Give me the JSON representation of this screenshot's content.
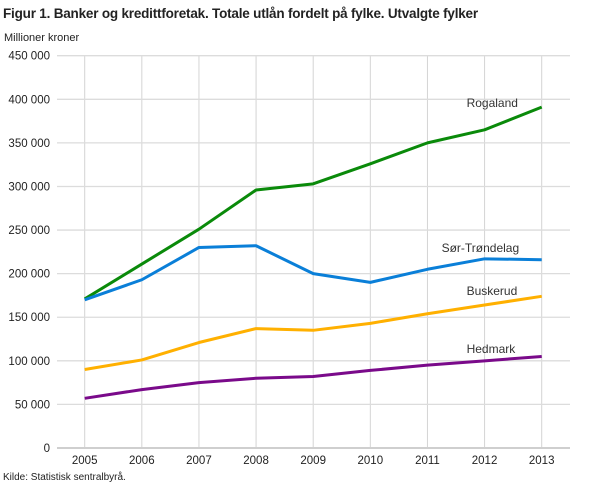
{
  "chart_data": {
    "type": "line",
    "title": "Figur 1. Banker og kredittforetak. Totale utlån fordelt på fylke. Utvalgte fylker",
    "ylabel": "Millioner kroner",
    "xlabel": "",
    "source": "Kilde: Statistisk sentralbyrå.",
    "x": [
      "2005",
      "2006",
      "2007",
      "2008",
      "2009",
      "2010",
      "2011",
      "2012",
      "2013"
    ],
    "ylim": [
      0,
      450000
    ],
    "yticks": [
      0,
      50000,
      100000,
      150000,
      200000,
      250000,
      300000,
      350000,
      400000,
      450000
    ],
    "ytick_labels": [
      "0",
      "50 000",
      "100 000",
      "150 000",
      "200 000",
      "250 000",
      "300 000",
      "350 000",
      "400 000",
      "450 000"
    ],
    "grid": true,
    "legend": "inline labels at line ends",
    "series": [
      {
        "name": "Rogaland",
        "color": "#0a8a0a",
        "values": [
          171000,
          211000,
          251000,
          296000,
          303000,
          326000,
          350000,
          365000,
          391000
        ]
      },
      {
        "name": "Sør-Trøndelag",
        "color": "#0a7fd8",
        "values": [
          170000,
          193000,
          230000,
          232000,
          200000,
          190000,
          205000,
          217000,
          216000
        ]
      },
      {
        "name": "Buskerud",
        "color": "#ffb000",
        "values": [
          90000,
          101000,
          121000,
          137000,
          135000,
          143000,
          154000,
          164000,
          174000
        ]
      },
      {
        "name": "Hedmark",
        "color": "#7a0a8a",
        "values": [
          57000,
          67000,
          75000,
          80000,
          82000,
          89000,
          95000,
          100000,
          105000
        ]
      }
    ]
  }
}
